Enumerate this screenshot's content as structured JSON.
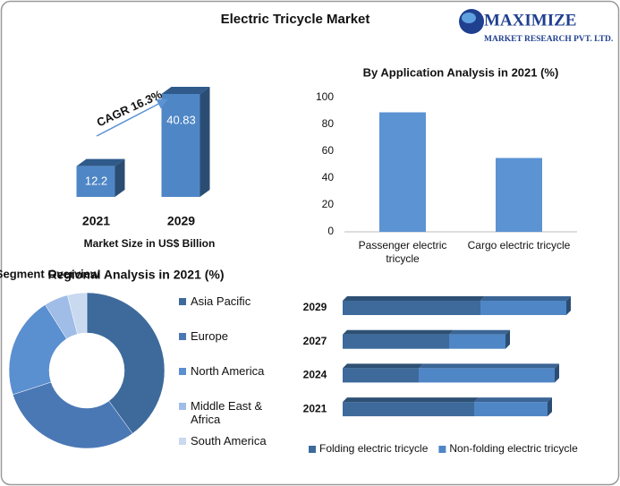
{
  "title": "Electric Tricycle Market",
  "logo": {
    "name": "MAXIMIZE",
    "tagline": "MARKET RESEARCH PVT. LTD."
  },
  "chart_data": [
    {
      "type": "bar",
      "categories": [
        "2021",
        "2029"
      ],
      "values": [
        12.2,
        40.83
      ],
      "color": "#4f86c6",
      "xlabel": "Market Size in US$ Billion",
      "annotation": "CAGR 16.3%"
    },
    {
      "type": "bar",
      "title": "By Application Analysis in 2021 (%)",
      "categories": [
        "Passenger electric tricycle",
        "Cargo electric tricycle"
      ],
      "values": [
        89,
        55
      ],
      "color": "#5b93d3",
      "ylim": [
        0,
        100
      ],
      "yticks": [
        0,
        20,
        40,
        60,
        80,
        100
      ]
    },
    {
      "type": "pie",
      "title": "Regional Analysis in 2021 (%)",
      "donut": true,
      "categories": [
        "Asia Pacific",
        "Europe",
        "North America",
        "Middle East & Africa",
        "South America"
      ],
      "values": [
        40,
        30,
        21,
        5,
        4
      ],
      "colors": [
        "#3d6a9b",
        "#4a78b5",
        "#5a8fd0",
        "#9fbde6",
        "#c9d9f0"
      ]
    },
    {
      "type": "bar",
      "orientation": "horizontal",
      "stacked": true,
      "title": "By Product Type Segment Overview",
      "categories": [
        "2029",
        "2027",
        "2024",
        "2021"
      ],
      "xlim": [
        0,
        260
      ],
      "series": [
        {
          "name": "Folding electric tricycle",
          "color": "#3d6a9b",
          "values": [
            154,
            119,
            85,
            147
          ]
        },
        {
          "name": "Non-folding electric tricycle",
          "color": "#4f86c6",
          "values": [
            96,
            63,
            152,
            82
          ]
        }
      ]
    }
  ]
}
